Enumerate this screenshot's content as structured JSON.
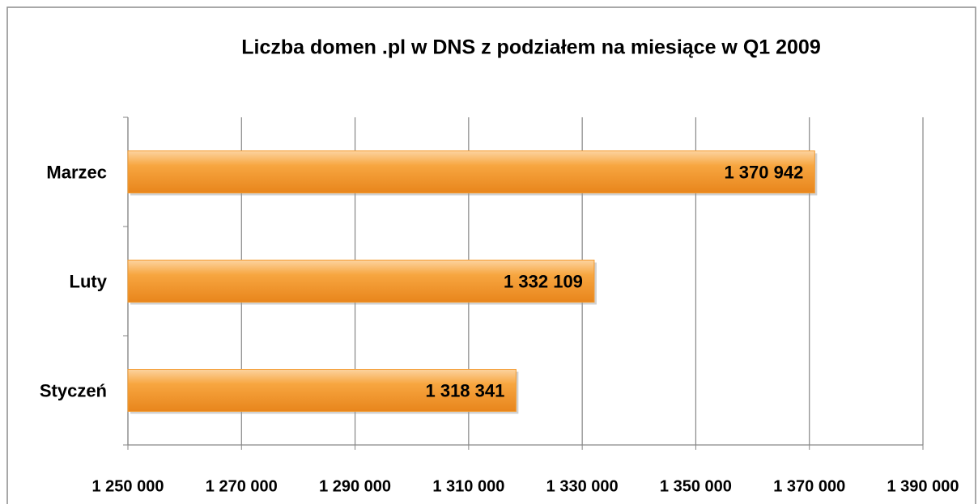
{
  "chart_data": {
    "type": "bar",
    "orientation": "horizontal",
    "title": "Liczba domen .pl w DNS z podziałem na miesiące w Q1 2009",
    "categories": [
      "Styczeń",
      "Luty",
      "Marzec"
    ],
    "values": [
      1318341,
      1332109,
      1370942
    ],
    "value_labels": [
      "1 318 341",
      "1 332 109",
      "1 370 942"
    ],
    "color": "#f39a2e",
    "xlim": [
      1250000,
      1390000
    ],
    "xticks": [
      {
        "value": 1250000,
        "label": "1 250 000"
      },
      {
        "value": 1270000,
        "label": "1 270 000"
      },
      {
        "value": 1290000,
        "label": "1 290 000"
      },
      {
        "value": 1310000,
        "label": "1 310 000"
      },
      {
        "value": 1330000,
        "label": "1 330 000"
      },
      {
        "value": 1350000,
        "label": "1 350 000"
      },
      {
        "value": 1370000,
        "label": "1 370 000"
      },
      {
        "value": 1390000,
        "label": "1 390 000"
      }
    ],
    "grid": true
  }
}
